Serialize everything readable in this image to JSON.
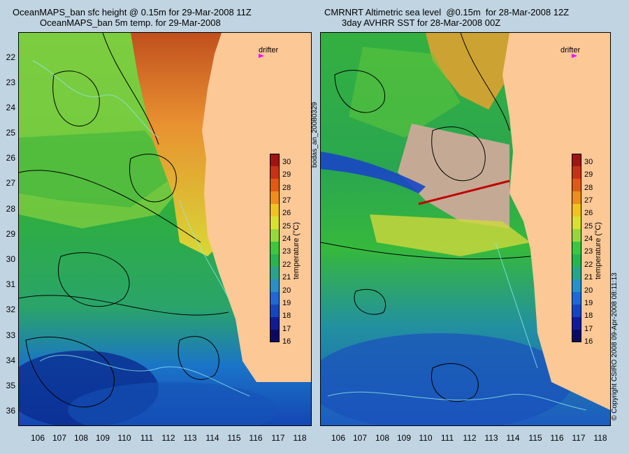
{
  "left_panel": {
    "title_line1": "OceanMAPS_ban sfc height @ 0.15m for 29-Mar-2008 11Z",
    "title_line2": "OceanMAPS_ban 5m temp. for 29-Mar-2008",
    "drifter_label": "drifter"
  },
  "right_panel": {
    "title_line1": "CMRNRT Altimetric sea level  @0.15m  for 28-Mar-2008 12Z",
    "title_line2": "3day AVHRR SST for 28-Mar-2008 00Z",
    "drifter_label": "drifter"
  },
  "side_label": "bodas_an_20080329",
  "copyright": "© Copyright CSIRO 2008    09-Apr-2008 08:11:13",
  "latitudes": [
    "22",
    "23",
    "24",
    "25",
    "26",
    "27",
    "28",
    "29",
    "30",
    "31",
    "32",
    "33",
    "34",
    "35",
    "36"
  ],
  "longitudes": [
    "106",
    "107",
    "108",
    "109",
    "110",
    "111",
    "112",
    "113",
    "114",
    "115",
    "116",
    "117",
    "118"
  ],
  "colorbar": {
    "label": "temperature (°C)",
    "ticks": [
      "30",
      "29",
      "28",
      "27",
      "26",
      "25",
      "24",
      "23",
      "22",
      "21",
      "20",
      "19",
      "18",
      "17",
      "16"
    ],
    "min": 16,
    "max": 30.7
  },
  "colors": {
    "background": "#c0d4e2",
    "land": "#fcc896",
    "drifter_marker": "#ff00ff",
    "contour_line": "#000000",
    "track_line": "#8fe8e8"
  }
}
